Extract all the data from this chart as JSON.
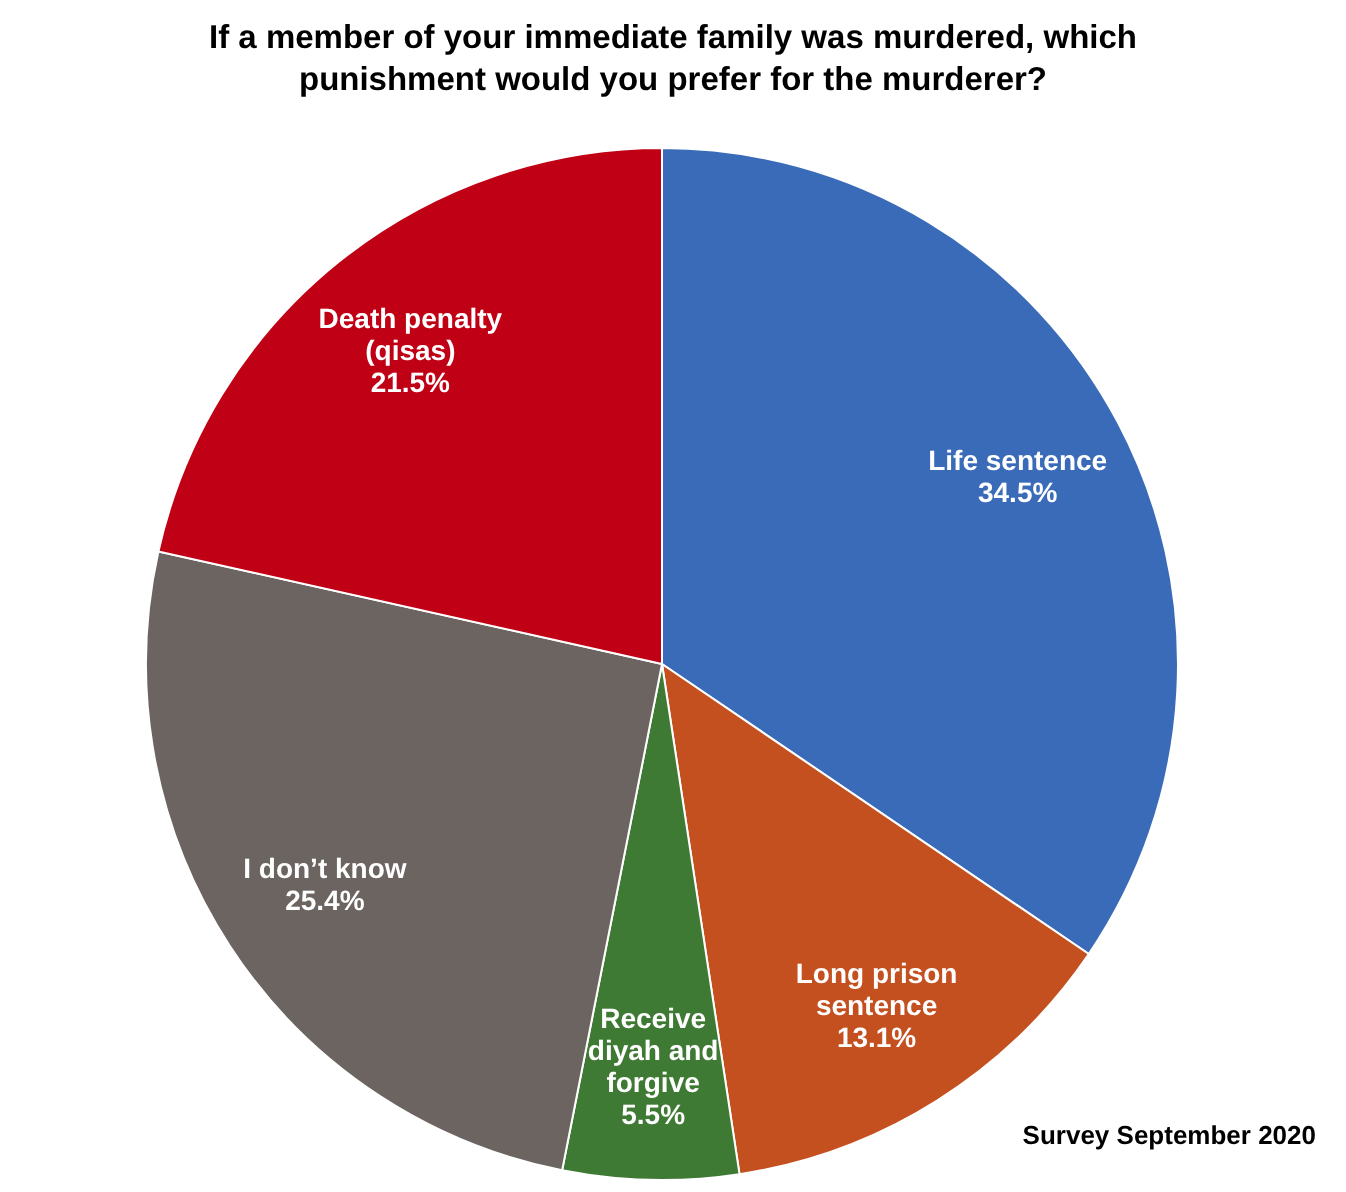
{
  "chart_data": {
    "type": "pie",
    "title": "If a member of your immediate family was murdered, which punishment would you prefer for the murderer?",
    "categories": [
      "Life sentence",
      "Long prison\nsentence",
      "Receive\ndiyah and\nforgive",
      "I don’t know",
      "Death penalty\n(qisas)"
    ],
    "values": [
      34.5,
      13.1,
      5.5,
      25.4,
      21.5
    ],
    "value_labels": [
      "34.5%",
      "13.1%",
      "5.5%",
      "25.4%",
      "21.5%"
    ],
    "colors": [
      "#3a6bb8",
      "#c4501f",
      "#3f7a35",
      "#6b6461",
      "#c00014"
    ],
    "annotations": [
      "Survey September 2020"
    ]
  }
}
